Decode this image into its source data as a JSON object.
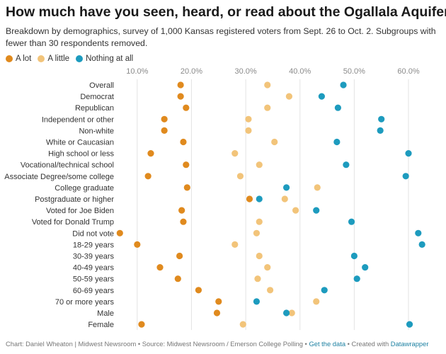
{
  "chart_data": {
    "type": "scatter",
    "title": "How much have you seen, heard, or read about the Ogallala Aquifer?",
    "subtitle": "Breakdown by demographics, survey of 1,000 Kansas registered voters from Sept. 26 to Oct. 2. Subgroups with fewer than 30 respondents removed.",
    "categories": [
      "Overall",
      "Democrat",
      "Republican",
      "Independent or other",
      "Non-white",
      "White or Caucasian",
      "High school or less",
      "Vocational/technical school",
      "Associate Degree/some college",
      "College graduate",
      "Postgraduate or higher",
      "Voted for Joe Biden",
      "Voted for Donald Trump",
      "Did not vote",
      "18-29 years",
      "30-39 years",
      "40-49 years",
      "50-59 years",
      "60-69 years",
      "70 or more years",
      "Male",
      "Female"
    ],
    "x_ticks": [
      "10.0%",
      "20.0%",
      "30.0%",
      "40.0%",
      "50.0%",
      "60.0%"
    ],
    "x_tick_values": [
      10,
      20,
      30,
      40,
      50,
      60
    ],
    "xlim": [
      6.5,
      63
    ],
    "xlabel": "",
    "ylabel": "",
    "grid": true,
    "legend_position": "top-left",
    "series": [
      {
        "name": "A lot",
        "color": "#e08a1e",
        "values": [
          18.0,
          18.0,
          19.0,
          15.0,
          15.0,
          18.5,
          12.5,
          19.0,
          12.0,
          19.2,
          30.7,
          18.2,
          18.5,
          6.8,
          10.0,
          17.8,
          14.2,
          17.5,
          21.3,
          25.0,
          24.7,
          10.8
        ]
      },
      {
        "name": "A little",
        "color": "#f2c47a",
        "values": [
          34.0,
          38.0,
          34.0,
          30.5,
          30.5,
          35.3,
          28.0,
          32.5,
          29.0,
          43.2,
          37.2,
          39.2,
          32.5,
          32.0,
          28.0,
          32.5,
          34.0,
          32.2,
          34.5,
          43.0,
          38.5,
          29.5
        ]
      },
      {
        "name": "Nothing at all",
        "color": "#1d9bbe",
        "values": [
          48.0,
          44.0,
          47.0,
          55.0,
          54.8,
          46.8,
          60.0,
          48.5,
          59.5,
          37.5,
          32.5,
          43.0,
          49.5,
          61.8,
          62.5,
          50.0,
          52.0,
          50.5,
          44.5,
          32.0,
          37.5,
          60.2
        ]
      }
    ]
  },
  "footer": {
    "text": "Chart: Daniel Wheaton | Midwest Newsroom • Source: Midwest Newsroom / Emerson College Polling •",
    "get_data_link": "Get the data",
    "created_with_text": "• Created with",
    "datawrapper_link": "Datawrapper"
  }
}
